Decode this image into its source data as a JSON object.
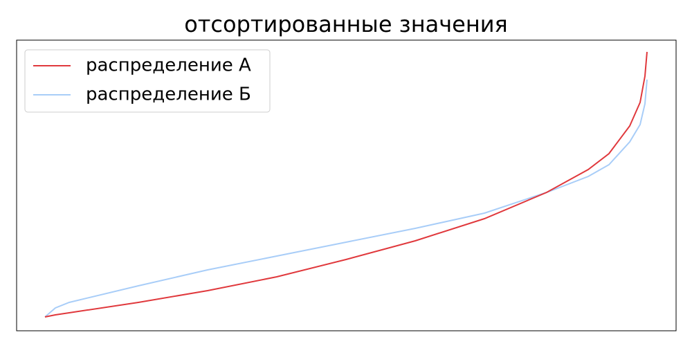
{
  "chart_data": {
    "type": "line",
    "title": "отсортированные значения",
    "x": [
      0,
      15,
      35,
      135,
      235,
      335,
      435,
      535,
      635,
      725,
      785,
      815,
      845,
      860,
      867,
      870
    ],
    "series": [
      {
        "name": "распределение А",
        "color": "#e0383c",
        "values": [
          20,
          23,
          26,
          41,
          58,
          78,
          103,
          130,
          162,
          200,
          233,
          256,
          296,
          330,
          368,
          403
        ]
      },
      {
        "name": "распределение Б",
        "color": "#a8cdf8",
        "values": [
          20,
          33,
          41,
          65,
          88,
          108,
          128,
          148,
          170,
          200,
          223,
          240,
          273,
          298,
          328,
          363
        ]
      }
    ],
    "xlim": [
      -41,
      912
    ],
    "ylim": [
      0,
      420
    ],
    "legend": "upper left"
  }
}
